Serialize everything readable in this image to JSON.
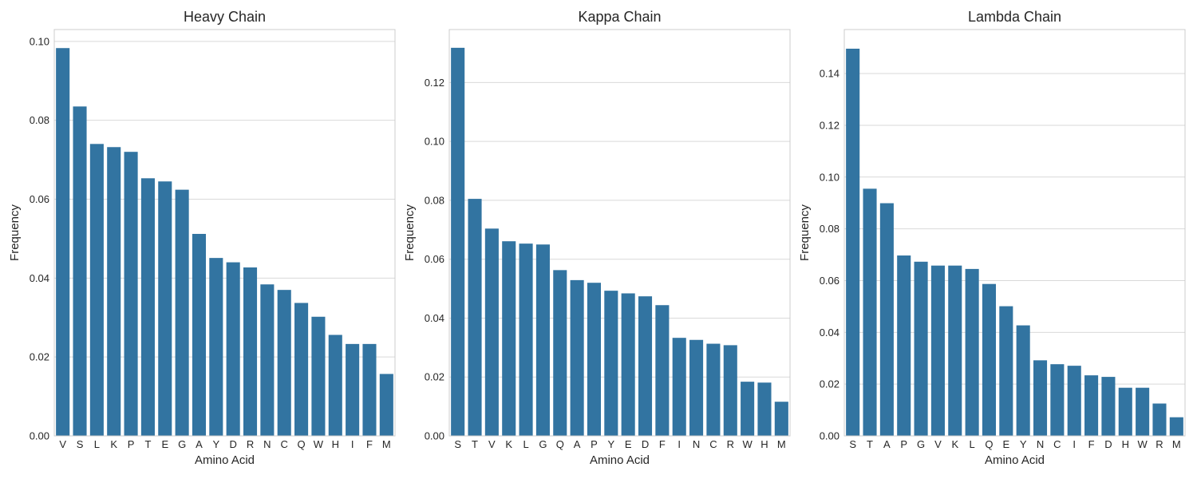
{
  "figure": {
    "bar_color": "#3274a1",
    "grid": true,
    "style": "whitegrid"
  },
  "chart_data": [
    {
      "type": "bar",
      "title": "Heavy Chain",
      "xlabel": "Amino Acid",
      "ylabel": "Frequency",
      "ylim": [
        0,
        0.103
      ],
      "yticks": [
        0.0,
        0.02,
        0.04,
        0.06,
        0.08,
        0.1
      ],
      "ytick_labels": [
        "0.00",
        "0.02",
        "0.04",
        "0.06",
        "0.08",
        "0.10"
      ],
      "categories": [
        "V",
        "S",
        "L",
        "K",
        "P",
        "T",
        "E",
        "G",
        "A",
        "Y",
        "D",
        "R",
        "N",
        "C",
        "Q",
        "W",
        "H",
        "I",
        "F",
        "M"
      ],
      "values": [
        0.0983,
        0.0835,
        0.074,
        0.0732,
        0.072,
        0.0653,
        0.0645,
        0.0624,
        0.0512,
        0.0451,
        0.044,
        0.0427,
        0.0384,
        0.037,
        0.0337,
        0.0302,
        0.0256,
        0.0233,
        0.0233,
        0.0157
      ]
    },
    {
      "type": "bar",
      "title": "Kappa Chain",
      "xlabel": "Amino Acid",
      "ylabel": "Frequency",
      "ylim": [
        0,
        0.138
      ],
      "yticks": [
        0.0,
        0.02,
        0.04,
        0.06,
        0.08,
        0.1,
        0.12
      ],
      "ytick_labels": [
        "0.00",
        "0.02",
        "0.04",
        "0.06",
        "0.08",
        "0.10",
        "0.12"
      ],
      "categories": [
        "S",
        "T",
        "V",
        "K",
        "L",
        "G",
        "Q",
        "A",
        "P",
        "Y",
        "E",
        "D",
        "F",
        "I",
        "N",
        "C",
        "R",
        "W",
        "H",
        "M"
      ],
      "values": [
        0.1318,
        0.0805,
        0.0704,
        0.0661,
        0.0653,
        0.065,
        0.0563,
        0.0529,
        0.052,
        0.0493,
        0.0484,
        0.0474,
        0.0444,
        0.0333,
        0.0326,
        0.0313,
        0.0308,
        0.0184,
        0.0181,
        0.0116
      ]
    },
    {
      "type": "bar",
      "title": "Lambda Chain",
      "xlabel": "Amino Acid",
      "ylabel": "Frequency",
      "ylim": [
        0,
        0.157
      ],
      "yticks": [
        0.0,
        0.02,
        0.04,
        0.06,
        0.08,
        0.1,
        0.12,
        0.14
      ],
      "ytick_labels": [
        "0.00",
        "0.02",
        "0.04",
        "0.06",
        "0.08",
        "0.10",
        "0.12",
        "0.14"
      ],
      "categories": [
        "S",
        "T",
        "A",
        "P",
        "G",
        "V",
        "K",
        "L",
        "Q",
        "E",
        "Y",
        "N",
        "C",
        "I",
        "F",
        "D",
        "H",
        "W",
        "R",
        "M"
      ],
      "values": [
        0.1496,
        0.0955,
        0.0899,
        0.0697,
        0.0673,
        0.0658,
        0.0658,
        0.0645,
        0.0587,
        0.0501,
        0.0427,
        0.0292,
        0.0277,
        0.0271,
        0.0234,
        0.0228,
        0.0186,
        0.0186,
        0.0125,
        0.0072
      ]
    }
  ]
}
